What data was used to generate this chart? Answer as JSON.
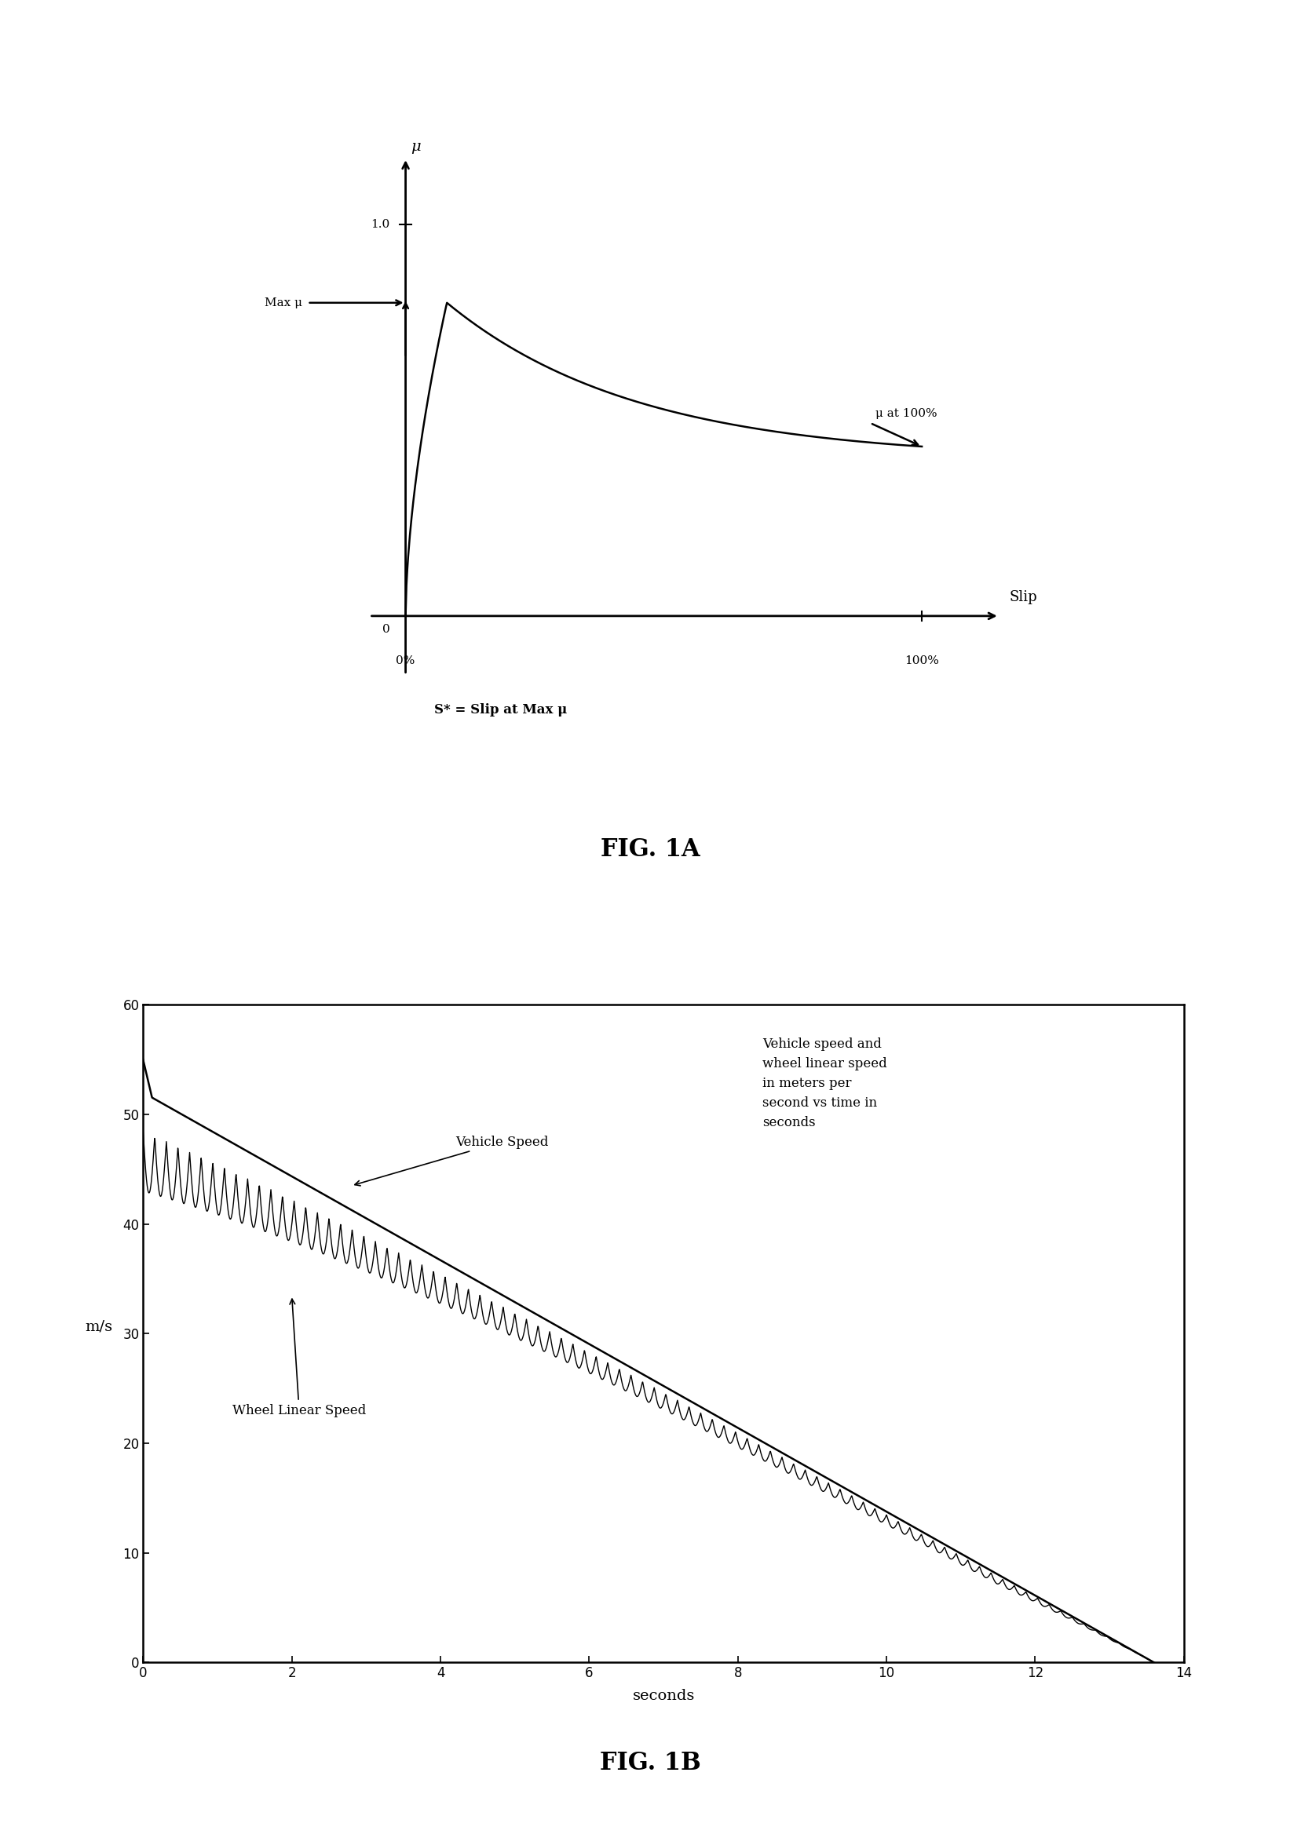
{
  "fig1a": {
    "title": "FIG. 1A",
    "mu_label": "μ",
    "slip_label": "Slip",
    "annotation_max_mu": "Max μ",
    "annotation_mu_100": "μ at 100%",
    "annotation_sstar": "S* = Slip at Max μ",
    "peak_x": 0.08,
    "peak_y": 0.8,
    "end_y": 0.4
  },
  "fig1b": {
    "title": "FIG. 1B",
    "ylabel": "m/s",
    "xlabel": "seconds",
    "annotation": "Vehicle speed and\nwheel linear speed\nin meters per\nsecond vs time in\nseconds",
    "label_vehicle": "Vehicle Speed",
    "label_wheel": "Wheel Linear Speed",
    "t_end": 13.6,
    "v0_vehicle": 52.0,
    "ylim": [
      0,
      60
    ],
    "xlim": [
      0,
      14
    ],
    "yticks": [
      0,
      10,
      20,
      30,
      40,
      50,
      60
    ],
    "xticks": [
      0,
      2,
      4,
      6,
      8,
      10,
      12,
      14
    ]
  },
  "bg_color": "#ffffff",
  "line_color": "#000000"
}
